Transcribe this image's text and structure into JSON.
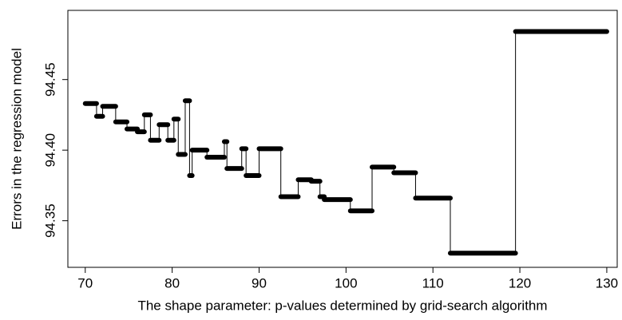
{
  "chart_data": {
    "type": "line",
    "x_label": "The shape parameter: p-values determined by grid-search algorithm",
    "y_label": "Errors in the regression model",
    "xlim": [
      68,
      131.2
    ],
    "ylim": [
      94.317,
      94.499
    ],
    "xticks": [
      70,
      80,
      90,
      100,
      110,
      120,
      130
    ],
    "yticks": [
      94.35,
      {
        "value": 94.4,
        "label": "94.40"
      },
      94.45
    ],
    "color": "#000000",
    "x": [
      70,
      71.3,
      71.3,
      72,
      72,
      73.5,
      73.5,
      74.8,
      74.8,
      76,
      76,
      76.8,
      76.8,
      77.5,
      77.5,
      78.5,
      78.5,
      79.5,
      79.5,
      80.2,
      80.2,
      80.7,
      80.7,
      81.5,
      81.5,
      82,
      82,
      82.3,
      82.3,
      84,
      84,
      86,
      86,
      86.3,
      86.3,
      88,
      88,
      88.5,
      88.5,
      90,
      90,
      92.5,
      92.5,
      94.5,
      94.5,
      96,
      96,
      97,
      97,
      97.5,
      97.5,
      100.5,
      100.5,
      103,
      103,
      105.5,
      105.5,
      106,
      106,
      108,
      108,
      112,
      112,
      119.5,
      119.5,
      130
    ],
    "values": [
      94.433,
      94.433,
      94.424,
      94.424,
      94.431,
      94.431,
      94.42,
      94.42,
      94.415,
      94.415,
      94.413,
      94.413,
      94.425,
      94.425,
      94.407,
      94.407,
      94.418,
      94.418,
      94.407,
      94.407,
      94.422,
      94.422,
      94.397,
      94.397,
      94.435,
      94.435,
      94.382,
      94.382,
      94.4,
      94.4,
      94.395,
      94.395,
      94.406,
      94.406,
      94.387,
      94.387,
      94.401,
      94.401,
      94.382,
      94.382,
      94.401,
      94.401,
      94.367,
      94.367,
      94.379,
      94.379,
      94.378,
      94.378,
      94.367,
      94.367,
      94.365,
      94.365,
      94.357,
      94.357,
      94.388,
      94.388,
      94.384,
      94.384,
      94.384,
      94.384,
      94.366,
      94.366,
      94.327,
      94.327,
      94.484,
      94.484
    ]
  }
}
